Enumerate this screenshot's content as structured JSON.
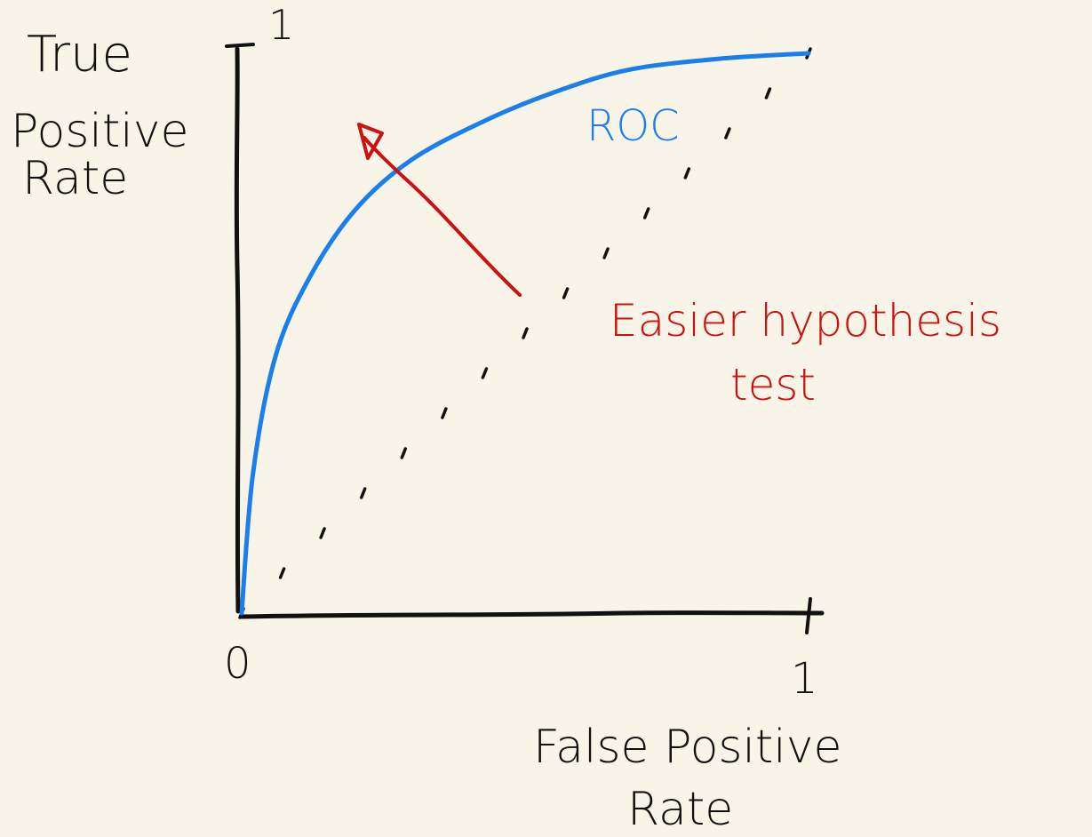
{
  "chart_data": {
    "type": "line",
    "title": "",
    "ylabel_lines": [
      "True",
      "Positive",
      "Rate"
    ],
    "xlabel_lines": [
      "False Positive",
      "Rate"
    ],
    "xlim": [
      0,
      1
    ],
    "ylim": [
      0,
      1
    ],
    "x_ticks": [
      "0",
      "1"
    ],
    "y_ticks": [
      "1"
    ],
    "grid": false,
    "series": [
      {
        "name": "ROC",
        "x": [
          0,
          0.02,
          0.06,
          0.12,
          0.2,
          0.3,
          0.43,
          0.55,
          0.68,
          0.84,
          1.0
        ],
        "y": [
          0,
          0.25,
          0.46,
          0.6,
          0.72,
          0.81,
          0.88,
          0.93,
          0.97,
          0.99,
          1.0
        ]
      },
      {
        "name": "",
        "style": "dotted",
        "x": [
          0,
          1
        ],
        "y": [
          0,
          1
        ]
      }
    ],
    "annotation": {
      "lines": [
        "Easier hypothesis",
        "test"
      ],
      "color": "#cc1111"
    },
    "colors": {
      "axis": "#111111",
      "roc": "#1a7fe8",
      "arrow": "#cc1111",
      "background": "#f8f5e8"
    }
  }
}
